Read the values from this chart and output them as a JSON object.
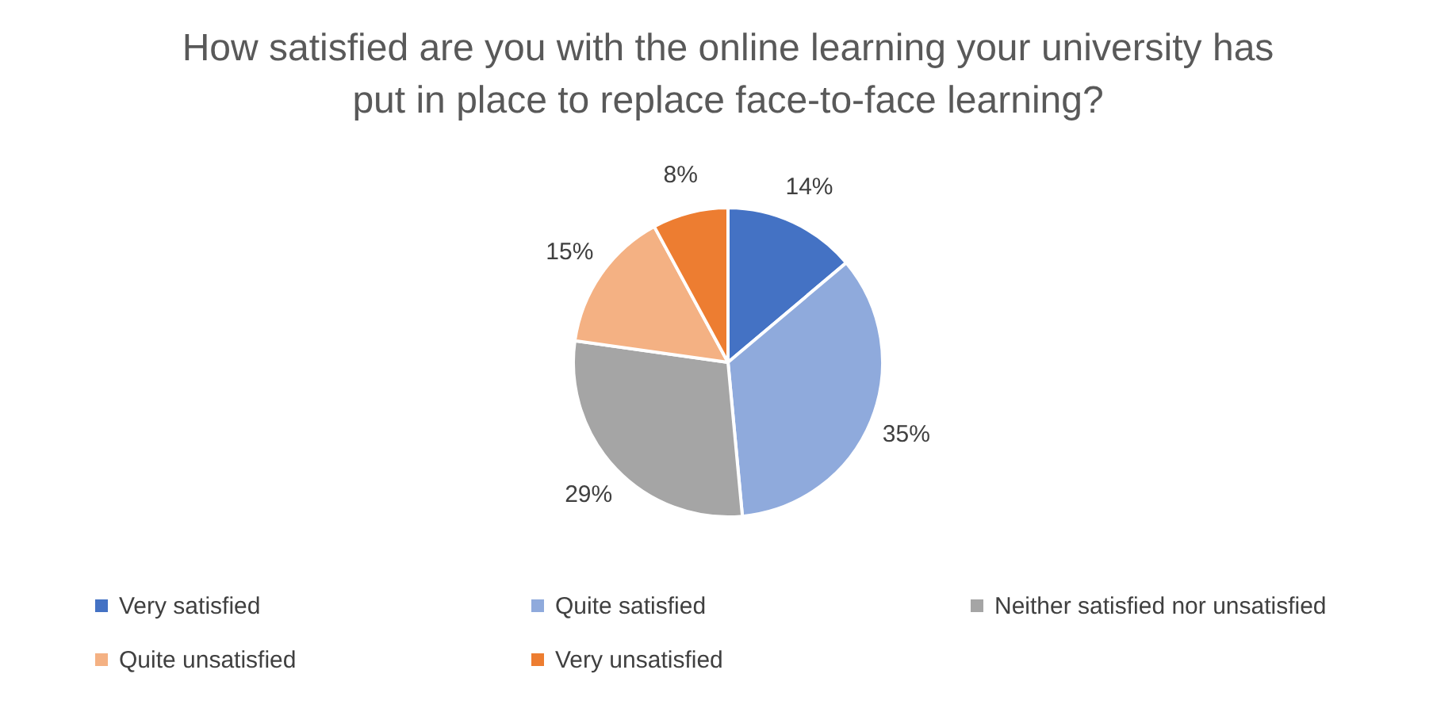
{
  "chart_data": {
    "type": "pie",
    "title": "How satisfied are you with the online learning your university has put in place to replace face-to-face learning?",
    "categories": [
      "Very satisfied",
      "Quite satisfied",
      "Neither satisfied nor unsatisfied",
      "Quite unsatisfied",
      "Very unsatisfied"
    ],
    "values": [
      14,
      35,
      29,
      15,
      8
    ],
    "value_labels": [
      "14%",
      "35%",
      "29%",
      "15%",
      "8%"
    ],
    "colors": [
      "#4472c4",
      "#8faadc",
      "#a5a5a5",
      "#f4b183",
      "#ed7d31"
    ],
    "legend": "bottom"
  }
}
